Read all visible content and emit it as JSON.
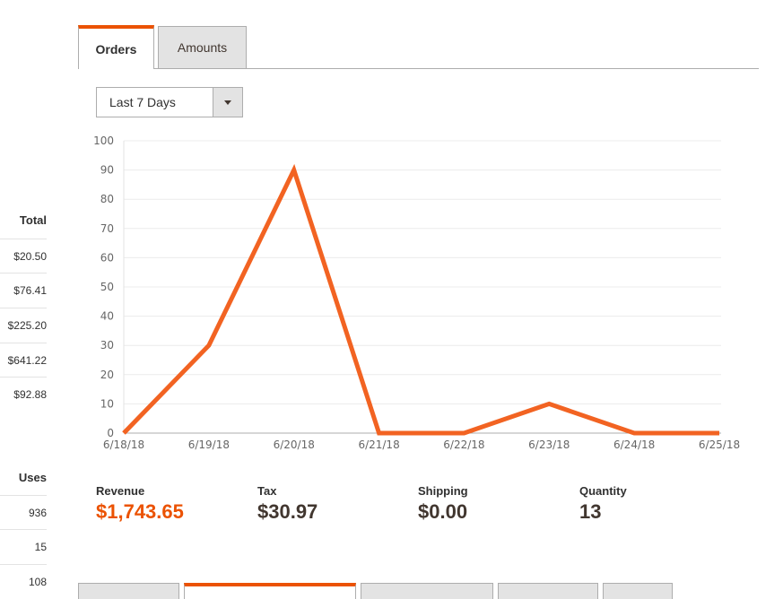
{
  "left_table_1": {
    "header": "Total",
    "rows": [
      "$20.50",
      "$76.41",
      "$225.20",
      "$641.22",
      "$92.88"
    ]
  },
  "left_table_2": {
    "header": "Uses",
    "rows": [
      "936",
      "15",
      "108"
    ]
  },
  "tabs": [
    {
      "label": "Orders",
      "active": true
    },
    {
      "label": "Amounts",
      "active": false
    }
  ],
  "period_select": {
    "value": "Last 7 Days"
  },
  "chart_data": {
    "type": "line",
    "x": [
      "6/18/18",
      "6/19/18",
      "6/20/18",
      "6/21/18",
      "6/22/18",
      "6/23/18",
      "6/24/18",
      "6/25/18"
    ],
    "series": [
      {
        "values": [
          0,
          30,
          90,
          0,
          0,
          10,
          0,
          0
        ],
        "color": "#eb5202"
      }
    ],
    "ylim": [
      0,
      100
    ],
    "yticks": [
      "0",
      "10",
      "20",
      "30",
      "40",
      "50",
      "60",
      "70",
      "80",
      "90",
      "100"
    ],
    "grid": true
  },
  "totals": {
    "revenue": {
      "label": "Revenue",
      "value": "$1,743.65"
    },
    "tax": {
      "label": "Tax",
      "value": "$30.97"
    },
    "shipping": {
      "label": "Shipping",
      "value": "$0.00"
    },
    "quantity": {
      "label": "Quantity",
      "value": "13"
    }
  },
  "colors": {
    "accent": "#eb5202",
    "line": "#f26322"
  }
}
